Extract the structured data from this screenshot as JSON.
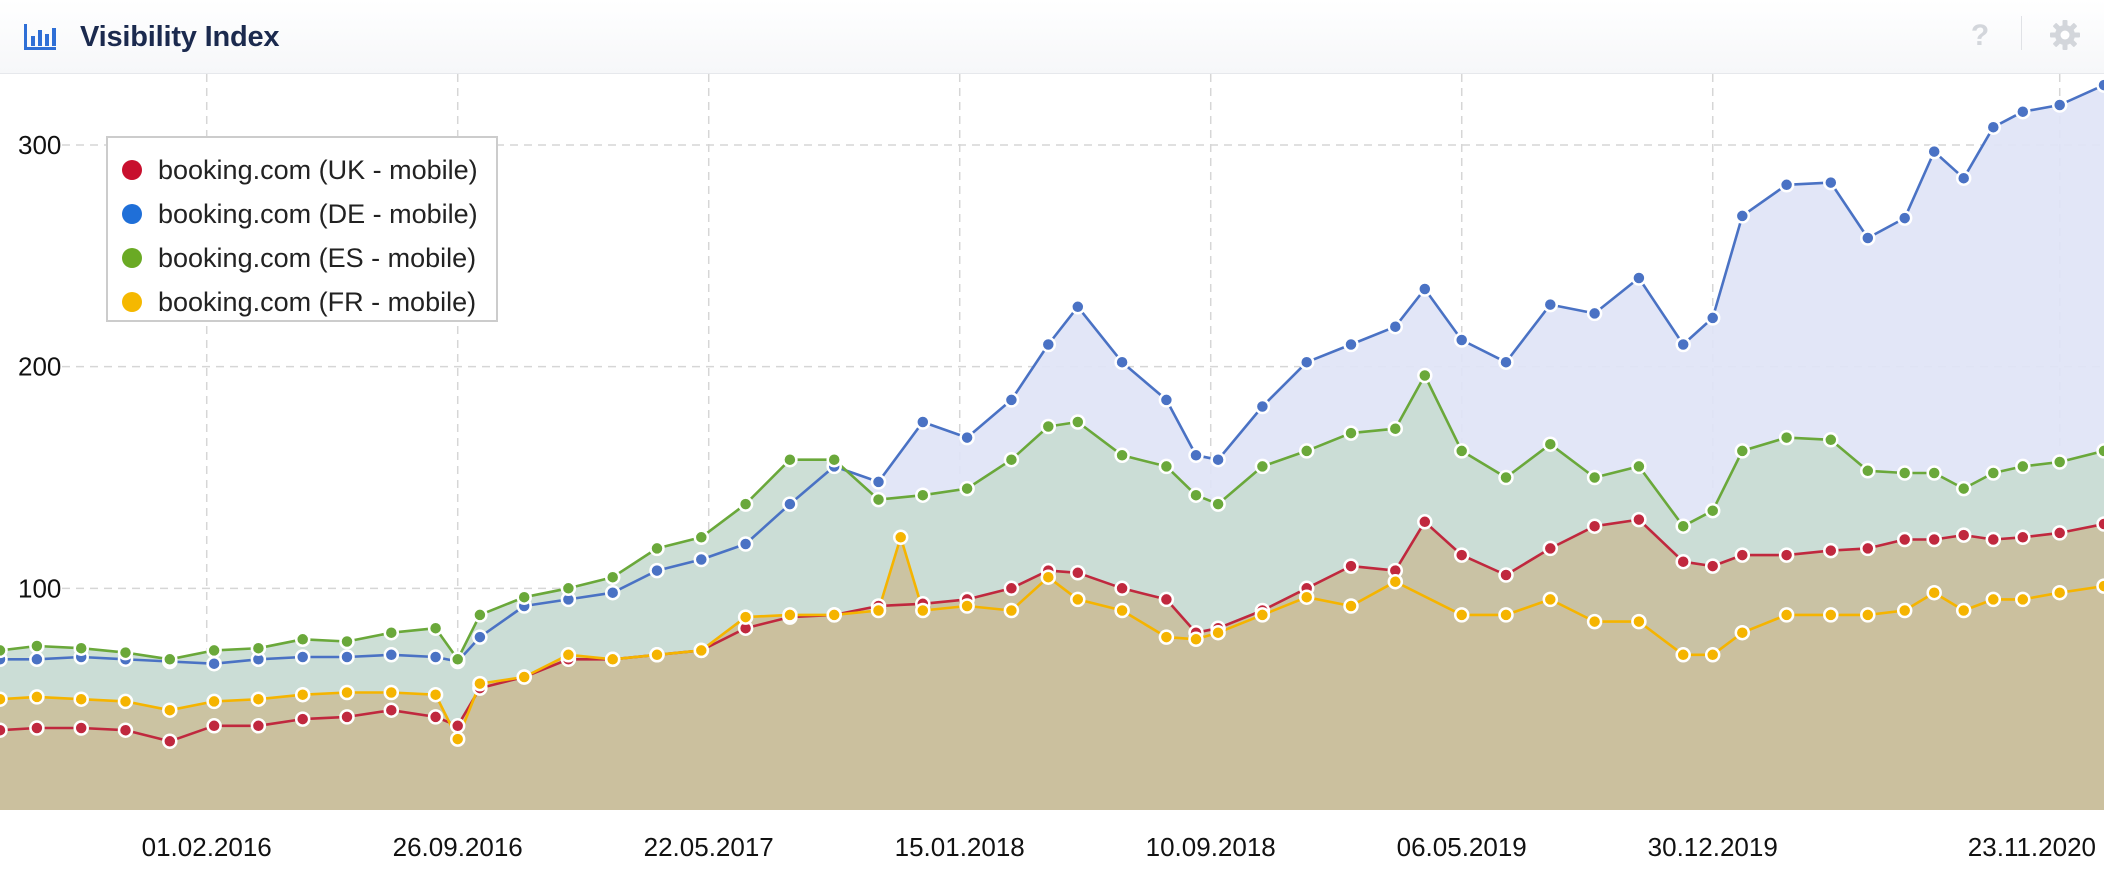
{
  "header": {
    "title": "Visibility Index",
    "help_symbol": "?",
    "icons": [
      "bar-chart-icon",
      "help-icon",
      "gear-icon"
    ]
  },
  "chart_data": {
    "type": "area",
    "title": "",
    "xlabel": "",
    "ylabel": "",
    "x_range": [
      "2015-07-20",
      "2021-01-04"
    ],
    "ylim": [
      0,
      332
    ],
    "yticks": [
      100,
      200,
      300
    ],
    "ytick_labels": [
      "100",
      "200",
      "300"
    ],
    "xticks": [
      "2016-02-01",
      "2016-09-26",
      "2017-05-22",
      "2018-01-15",
      "2018-09-10",
      "2019-05-06",
      "2019-12-30",
      "2020-11-23"
    ],
    "xtick_labels": [
      "01.02.2016",
      "26.09.2016",
      "22.05.2017",
      "15.01.2018",
      "10.09.2018",
      "06.05.2019",
      "30.12.2019",
      "23.11.2020"
    ],
    "grid": true,
    "legend_position": "top-left",
    "series": [
      {
        "name": "booking.com (DE - mobile)",
        "color": "#4a72c4",
        "fill": "#dfe4f6",
        "points": [
          [
            "2015-07-20",
            68
          ],
          [
            "2015-08-24",
            68
          ],
          [
            "2015-10-05",
            69
          ],
          [
            "2015-11-16",
            68
          ],
          [
            "2015-12-28",
            67
          ],
          [
            "2016-02-08",
            66
          ],
          [
            "2016-03-21",
            68
          ],
          [
            "2016-05-02",
            69
          ],
          [
            "2016-06-13",
            69
          ],
          [
            "2016-07-25",
            70
          ],
          [
            "2016-09-05",
            69
          ],
          [
            "2016-09-26",
            67
          ],
          [
            "2016-10-17",
            78
          ],
          [
            "2016-11-28",
            92
          ],
          [
            "2017-01-09",
            95
          ],
          [
            "2017-02-20",
            98
          ],
          [
            "2017-04-03",
            108
          ],
          [
            "2017-05-15",
            113
          ],
          [
            "2017-06-26",
            120
          ],
          [
            "2017-08-07",
            138
          ],
          [
            "2017-09-18",
            155
          ],
          [
            "2017-10-30",
            148
          ],
          [
            "2017-12-11",
            175
          ],
          [
            "2018-01-22",
            168
          ],
          [
            "2018-03-05",
            185
          ],
          [
            "2018-04-09",
            210
          ],
          [
            "2018-05-07",
            227
          ],
          [
            "2018-06-18",
            202
          ],
          [
            "2018-07-30",
            185
          ],
          [
            "2018-08-27",
            160
          ],
          [
            "2018-09-17",
            158
          ],
          [
            "2018-10-29",
            182
          ],
          [
            "2018-12-10",
            202
          ],
          [
            "2019-01-21",
            210
          ],
          [
            "2019-03-04",
            218
          ],
          [
            "2019-04-01",
            235
          ],
          [
            "2019-05-06",
            212
          ],
          [
            "2019-06-17",
            202
          ],
          [
            "2019-07-29",
            228
          ],
          [
            "2019-09-09",
            224
          ],
          [
            "2019-10-21",
            240
          ],
          [
            "2019-12-02",
            210
          ],
          [
            "2019-12-30",
            222
          ],
          [
            "2020-01-27",
            268
          ],
          [
            "2020-03-09",
            282
          ],
          [
            "2020-04-20",
            283
          ],
          [
            "2020-05-25",
            258
          ],
          [
            "2020-06-29",
            267
          ],
          [
            "2020-07-27",
            297
          ],
          [
            "2020-08-24",
            285
          ],
          [
            "2020-09-21",
            308
          ],
          [
            "2020-10-19",
            315
          ],
          [
            "2020-11-23",
            318
          ],
          [
            "2021-01-04",
            327
          ]
        ]
      },
      {
        "name": "booking.com (ES - mobile)",
        "color": "#6aa83a",
        "fill": "#c9dcd2",
        "points": [
          [
            "2015-07-20",
            72
          ],
          [
            "2015-08-24",
            74
          ],
          [
            "2015-10-05",
            73
          ],
          [
            "2015-11-16",
            71
          ],
          [
            "2015-12-28",
            68
          ],
          [
            "2016-02-08",
            72
          ],
          [
            "2016-03-21",
            73
          ],
          [
            "2016-05-02",
            77
          ],
          [
            "2016-06-13",
            76
          ],
          [
            "2016-07-25",
            80
          ],
          [
            "2016-09-05",
            82
          ],
          [
            "2016-09-26",
            68
          ],
          [
            "2016-10-17",
            88
          ],
          [
            "2016-11-28",
            96
          ],
          [
            "2017-01-09",
            100
          ],
          [
            "2017-02-20",
            105
          ],
          [
            "2017-04-03",
            118
          ],
          [
            "2017-05-15",
            123
          ],
          [
            "2017-06-26",
            138
          ],
          [
            "2017-08-07",
            158
          ],
          [
            "2017-09-18",
            158
          ],
          [
            "2017-10-30",
            140
          ],
          [
            "2017-12-11",
            142
          ],
          [
            "2018-01-22",
            145
          ],
          [
            "2018-03-05",
            158
          ],
          [
            "2018-04-09",
            173
          ],
          [
            "2018-05-07",
            175
          ],
          [
            "2018-06-18",
            160
          ],
          [
            "2018-07-30",
            155
          ],
          [
            "2018-08-27",
            142
          ],
          [
            "2018-09-17",
            138
          ],
          [
            "2018-10-29",
            155
          ],
          [
            "2018-12-10",
            162
          ],
          [
            "2019-01-21",
            170
          ],
          [
            "2019-03-04",
            172
          ],
          [
            "2019-04-01",
            196
          ],
          [
            "2019-05-06",
            162
          ],
          [
            "2019-06-17",
            150
          ],
          [
            "2019-07-29",
            165
          ],
          [
            "2019-09-09",
            150
          ],
          [
            "2019-10-21",
            155
          ],
          [
            "2019-12-02",
            128
          ],
          [
            "2019-12-30",
            135
          ],
          [
            "2020-01-27",
            162
          ],
          [
            "2020-03-09",
            168
          ],
          [
            "2020-04-20",
            167
          ],
          [
            "2020-05-25",
            153
          ],
          [
            "2020-06-29",
            152
          ],
          [
            "2020-07-27",
            152
          ],
          [
            "2020-08-24",
            145
          ],
          [
            "2020-09-21",
            152
          ],
          [
            "2020-10-19",
            155
          ],
          [
            "2020-11-23",
            157
          ],
          [
            "2021-01-04",
            162
          ]
        ]
      },
      {
        "name": "booking.com (UK - mobile)",
        "color": "#c0283e",
        "fill": "#c9bfa0",
        "points": [
          [
            "2015-07-20",
            36
          ],
          [
            "2015-08-24",
            37
          ],
          [
            "2015-10-05",
            37
          ],
          [
            "2015-11-16",
            36
          ],
          [
            "2015-12-28",
            31
          ],
          [
            "2016-02-08",
            38
          ],
          [
            "2016-03-21",
            38
          ],
          [
            "2016-05-02",
            41
          ],
          [
            "2016-06-13",
            42
          ],
          [
            "2016-07-25",
            45
          ],
          [
            "2016-09-05",
            42
          ],
          [
            "2016-09-26",
            38
          ],
          [
            "2016-10-17",
            55
          ],
          [
            "2016-11-28",
            60
          ],
          [
            "2017-01-09",
            68
          ],
          [
            "2017-02-20",
            68
          ],
          [
            "2017-04-03",
            70
          ],
          [
            "2017-05-15",
            72
          ],
          [
            "2017-06-26",
            82
          ],
          [
            "2017-08-07",
            87
          ],
          [
            "2017-09-18",
            88
          ],
          [
            "2017-10-30",
            92
          ],
          [
            "2017-12-11",
            93
          ],
          [
            "2018-01-22",
            95
          ],
          [
            "2018-03-05",
            100
          ],
          [
            "2018-04-09",
            108
          ],
          [
            "2018-05-07",
            107
          ],
          [
            "2018-06-18",
            100
          ],
          [
            "2018-07-30",
            95
          ],
          [
            "2018-08-27",
            80
          ],
          [
            "2018-09-17",
            82
          ],
          [
            "2018-10-29",
            90
          ],
          [
            "2018-12-10",
            100
          ],
          [
            "2019-01-21",
            110
          ],
          [
            "2019-03-04",
            108
          ],
          [
            "2019-04-01",
            130
          ],
          [
            "2019-05-06",
            115
          ],
          [
            "2019-06-17",
            106
          ],
          [
            "2019-07-29",
            118
          ],
          [
            "2019-09-09",
            128
          ],
          [
            "2019-10-21",
            131
          ],
          [
            "2019-12-02",
            112
          ],
          [
            "2019-12-30",
            110
          ],
          [
            "2020-01-27",
            115
          ],
          [
            "2020-03-09",
            115
          ],
          [
            "2020-04-20",
            117
          ],
          [
            "2020-05-25",
            118
          ],
          [
            "2020-06-29",
            122
          ],
          [
            "2020-07-27",
            122
          ],
          [
            "2020-08-24",
            124
          ],
          [
            "2020-09-21",
            122
          ],
          [
            "2020-10-19",
            123
          ],
          [
            "2020-11-23",
            125
          ],
          [
            "2021-01-04",
            129
          ]
        ]
      },
      {
        "name": "booking.com (FR - mobile)",
        "color": "#f5b400",
        "fill": "#cbc09d",
        "points": [
          [
            "2015-07-20",
            50
          ],
          [
            "2015-08-24",
            51
          ],
          [
            "2015-10-05",
            50
          ],
          [
            "2015-11-16",
            49
          ],
          [
            "2015-12-28",
            45
          ],
          [
            "2016-02-08",
            49
          ],
          [
            "2016-03-21",
            50
          ],
          [
            "2016-05-02",
            52
          ],
          [
            "2016-06-13",
            53
          ],
          [
            "2016-07-25",
            53
          ],
          [
            "2016-09-05",
            52
          ],
          [
            "2016-09-26",
            32
          ],
          [
            "2016-10-17",
            57
          ],
          [
            "2016-11-28",
            60
          ],
          [
            "2017-01-09",
            70
          ],
          [
            "2017-02-20",
            68
          ],
          [
            "2017-04-03",
            70
          ],
          [
            "2017-05-15",
            72
          ],
          [
            "2017-06-26",
            87
          ],
          [
            "2017-08-07",
            88
          ],
          [
            "2017-09-18",
            88
          ],
          [
            "2017-10-30",
            90
          ],
          [
            "2017-11-20",
            123
          ],
          [
            "2017-12-11",
            90
          ],
          [
            "2018-01-22",
            92
          ],
          [
            "2018-03-05",
            90
          ],
          [
            "2018-04-09",
            105
          ],
          [
            "2018-05-07",
            95
          ],
          [
            "2018-06-18",
            90
          ],
          [
            "2018-07-30",
            78
          ],
          [
            "2018-08-27",
            77
          ],
          [
            "2018-09-17",
            80
          ],
          [
            "2018-10-29",
            88
          ],
          [
            "2018-12-10",
            96
          ],
          [
            "2019-01-21",
            92
          ],
          [
            "2019-03-04",
            103
          ],
          [
            "2019-05-06",
            88
          ],
          [
            "2019-06-17",
            88
          ],
          [
            "2019-07-29",
            95
          ],
          [
            "2019-09-09",
            85
          ],
          [
            "2019-10-21",
            85
          ],
          [
            "2019-12-02",
            70
          ],
          [
            "2019-12-30",
            70
          ],
          [
            "2020-01-27",
            80
          ],
          [
            "2020-03-09",
            88
          ],
          [
            "2020-04-20",
            88
          ],
          [
            "2020-05-25",
            88
          ],
          [
            "2020-06-29",
            90
          ],
          [
            "2020-07-27",
            98
          ],
          [
            "2020-08-24",
            90
          ],
          [
            "2020-09-21",
            95
          ],
          [
            "2020-10-19",
            95
          ],
          [
            "2020-11-23",
            98
          ],
          [
            "2021-01-04",
            101
          ]
        ]
      }
    ]
  },
  "legend": {
    "items": [
      {
        "label": "booking.com (UK - mobile)",
        "color": "#c8102e"
      },
      {
        "label": "booking.com (DE - mobile)",
        "color": "#1f6fd8"
      },
      {
        "label": "booking.com (ES - mobile)",
        "color": "#6aaa24"
      },
      {
        "label": "booking.com (FR - mobile)",
        "color": "#f5b800"
      }
    ]
  }
}
